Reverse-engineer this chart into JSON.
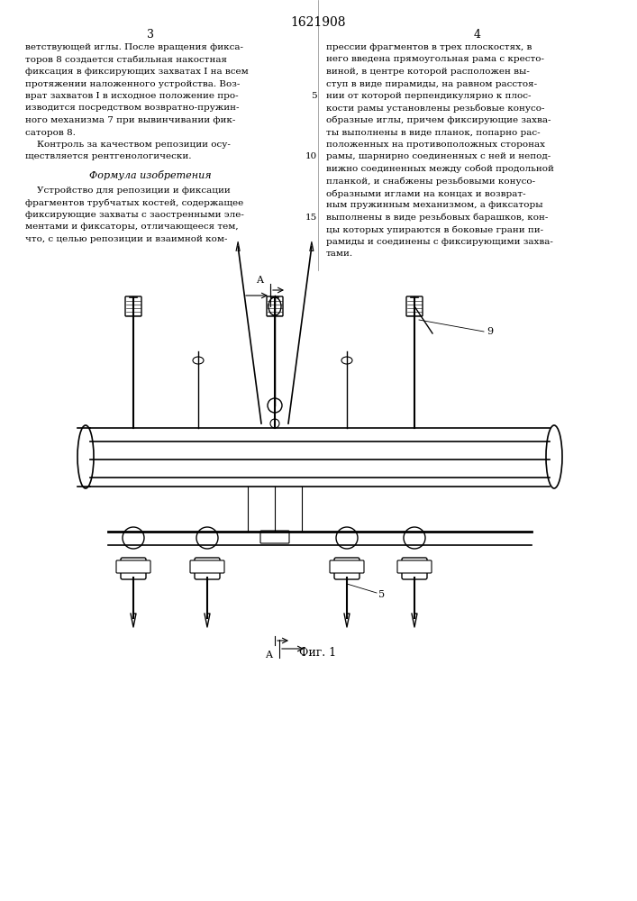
{
  "patent_number": "1621908",
  "col_left": "3",
  "col_right": "4",
  "text_left": "ветствующей иглы. После вращения фикса-\nторов 8 создается стабильная накостная\nфиксация в фиксирующих захватах I на всем\nпротяжении наложенного устройства. Воз-\nврат захватов I в исходное положение про-\nизводится посредством возвратно-пружин-\nного механизма 7 при вывинчивании фик-\nсаторов 8.\n    Контроль за качеством репозиции осу-\nществляется рентгенологически.",
  "formula_header": "Формула изобретения",
  "formula_text": "    Устройство для репозиции и фиксации\nфрагментов трубчатых костей, содержащее\nфиксирующие захваты с заостренными эле-\nментами и фиксаторы, отличающееся тем,\nчто, с целью репозиции и взаимной ком-",
  "text_right": "прессии фрагментов в трех плоскостях, в\nнего введена прямоугольная рама с кресто-\nвиной, в центре которой расположен вы-\nступ в виде пирамиды, на равном расстоя-\nнии от которой перпендикулярно к плос-\nкости рамы установлены резьбовые конусо-\nобразные иглы, причем фиксирующие захва-\nты выполнены в виде планок, попарно рас-\nположенных на противоположных сторонах\nрамы, шарнирно соединенных с ней и непод-\nвижно соединенных между собой продольной\nпланкой, и снабжены резьбовыми конусо-\nобразными иглами на концах и возврат-\nным пружинным механизмом, а фиксаторы\nвыполнены в виде резьбовых барашков, кон-\nцы которых упираются в боковые грани пи-\nрамиды и соединены с фиксирующими захва-\nтами.",
  "line_numbers_right": [
    "5",
    "10",
    "15"
  ],
  "fig_label": "Фиг. 1",
  "bg_color": "#ffffff",
  "text_color": "#000000",
  "line_color": "#222222"
}
